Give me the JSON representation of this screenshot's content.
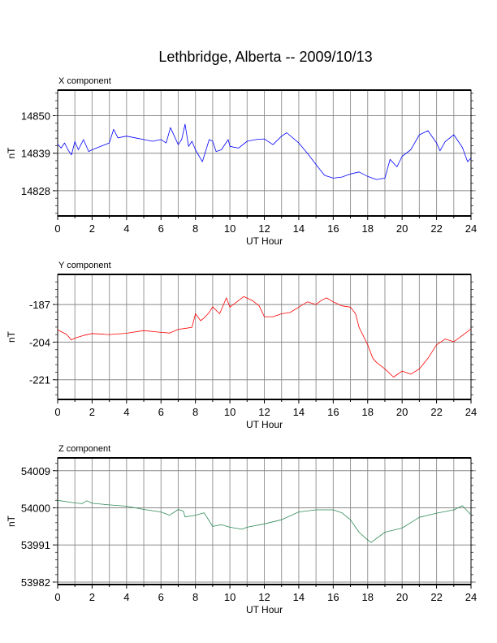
{
  "chart_data": {
    "type": "line",
    "title": "Lethbridge, Alberta -- 2009/10/13",
    "panels": [
      {
        "label": "X component",
        "xlabel": "UT Hour",
        "ylabel": "nT",
        "color": "#0000ff",
        "xlim": [
          0,
          24
        ],
        "ylim": [
          14820.6,
          14857.5
        ],
        "xticks": [
          0,
          2,
          4,
          6,
          8,
          10,
          12,
          14,
          16,
          18,
          20,
          22,
          24
        ],
        "yticks": [
          14828,
          14839,
          14850
        ],
        "points": [
          [
            0,
            14841.7
          ],
          [
            0.2,
            14840.5
          ],
          [
            0.4,
            14842
          ],
          [
            0.6,
            14840
          ],
          [
            0.8,
            14838.5
          ],
          [
            1,
            14842.4
          ],
          [
            1.2,
            14840
          ],
          [
            1.5,
            14843
          ],
          [
            1.8,
            14839.5
          ],
          [
            2,
            14840
          ],
          [
            2.5,
            14841
          ],
          [
            3,
            14842
          ],
          [
            3.25,
            14846
          ],
          [
            3.5,
            14843.5
          ],
          [
            4,
            14844
          ],
          [
            4.5,
            14843.5
          ],
          [
            5,
            14843
          ],
          [
            5.5,
            14842.5
          ],
          [
            6,
            14843
          ],
          [
            6.3,
            14842
          ],
          [
            6.55,
            14846.5
          ],
          [
            7,
            14841.5
          ],
          [
            7.2,
            14843
          ],
          [
            7.4,
            14847.5
          ],
          [
            7.6,
            14841
          ],
          [
            7.8,
            14842.5
          ],
          [
            8,
            14840
          ],
          [
            8.4,
            14836.5
          ],
          [
            8.8,
            14843
          ],
          [
            9,
            14842.5
          ],
          [
            9.2,
            14839.5
          ],
          [
            9.5,
            14840
          ],
          [
            9.9,
            14843
          ],
          [
            10,
            14841
          ],
          [
            10.5,
            14840.5
          ],
          [
            11,
            14842.5
          ],
          [
            11.5,
            14843
          ],
          [
            12,
            14843.2
          ],
          [
            12.5,
            14841.5
          ],
          [
            13,
            14844
          ],
          [
            13.3,
            14845
          ],
          [
            14,
            14842
          ],
          [
            14.5,
            14839
          ],
          [
            15,
            14835.7
          ],
          [
            15.5,
            14832.5
          ],
          [
            16,
            14831.7
          ],
          [
            16.5,
            14832
          ],
          [
            17,
            14832.9
          ],
          [
            17.5,
            14833.5
          ],
          [
            18,
            14832.2
          ],
          [
            18.5,
            14831.3
          ],
          [
            19,
            14831.7
          ],
          [
            19.3,
            14837.2
          ],
          [
            19.7,
            14835
          ],
          [
            20,
            14838.1
          ],
          [
            20.5,
            14840
          ],
          [
            21,
            14844.4
          ],
          [
            21.5,
            14845.6
          ],
          [
            22,
            14842
          ],
          [
            22.2,
            14839.7
          ],
          [
            22.5,
            14842.4
          ],
          [
            23,
            14844.4
          ],
          [
            23.5,
            14840.7
          ],
          [
            23.8,
            14836.5
          ],
          [
            24,
            14837.6
          ]
        ]
      },
      {
        "label": "Y component",
        "xlabel": "UT Hour",
        "ylabel": "nT",
        "color": "#ff0000",
        "xlim": [
          0,
          24
        ],
        "ylim": [
          -229.9,
          -173.4
        ],
        "xticks": [
          0,
          2,
          4,
          6,
          8,
          10,
          12,
          14,
          16,
          18,
          20,
          22,
          24
        ],
        "yticks": [
          -221,
          -204,
          -187
        ],
        "points": [
          [
            0,
            -198.5
          ],
          [
            0.5,
            -200.4
          ],
          [
            0.8,
            -203
          ],
          [
            1,
            -202.2
          ],
          [
            1.5,
            -201
          ],
          [
            2,
            -200.1
          ],
          [
            3,
            -200.6
          ],
          [
            4,
            -200
          ],
          [
            5,
            -198.8
          ],
          [
            6,
            -199.6
          ],
          [
            6.5,
            -199.9
          ],
          [
            7,
            -198.2
          ],
          [
            7.5,
            -197.7
          ],
          [
            7.8,
            -197.3
          ],
          [
            8,
            -191.2
          ],
          [
            8.3,
            -194.3
          ],
          [
            8.5,
            -193.1
          ],
          [
            8.8,
            -190.6
          ],
          [
            9,
            -188
          ],
          [
            9.4,
            -191.2
          ],
          [
            9.8,
            -184
          ],
          [
            10,
            -188.2
          ],
          [
            10.5,
            -185.2
          ],
          [
            10.8,
            -183.4
          ],
          [
            11.3,
            -185.2
          ],
          [
            11.7,
            -187.6
          ],
          [
            12,
            -192.5
          ],
          [
            12.5,
            -192.5
          ],
          [
            13,
            -191.2
          ],
          [
            13.5,
            -190.6
          ],
          [
            14,
            -188.2
          ],
          [
            14.5,
            -185.8
          ],
          [
            15,
            -187
          ],
          [
            15.3,
            -185.2
          ],
          [
            15.6,
            -184
          ],
          [
            16,
            -185.8
          ],
          [
            16.5,
            -187.6
          ],
          [
            17,
            -188.2
          ],
          [
            17.3,
            -191.2
          ],
          [
            17.5,
            -197.3
          ],
          [
            18,
            -205.2
          ],
          [
            18.3,
            -211.3
          ],
          [
            18.5,
            -213.1
          ],
          [
            19,
            -216.1
          ],
          [
            19.5,
            -219.8
          ],
          [
            20,
            -217.1
          ],
          [
            20.5,
            -218.5
          ],
          [
            21,
            -216.1
          ],
          [
            21.5,
            -211.3
          ],
          [
            22,
            -205.2
          ],
          [
            22.5,
            -202.6
          ],
          [
            23,
            -203.8
          ],
          [
            23.5,
            -201
          ],
          [
            24,
            -198
          ]
        ]
      },
      {
        "label": "Z component",
        "xlabel": "UT Hour",
        "ylabel": "nT",
        "color": "#2e8b57",
        "xlim": [
          0,
          24
        ],
        "ylim": [
          53981.4,
          54012.1
        ],
        "xticks": [
          0,
          2,
          4,
          6,
          8,
          10,
          12,
          14,
          16,
          18,
          20,
          22,
          24
        ],
        "yticks": [
          53982,
          53991,
          54000,
          54009
        ],
        "points": [
          [
            0,
            54001.8
          ],
          [
            0.5,
            54001.5
          ],
          [
            1,
            54001.2
          ],
          [
            1.4,
            54001
          ],
          [
            1.7,
            54001.7
          ],
          [
            2,
            54001.1
          ],
          [
            3,
            54000.7
          ],
          [
            4,
            54000.4
          ],
          [
            5,
            53999.6
          ],
          [
            6,
            53999
          ],
          [
            6.5,
            53998.2
          ],
          [
            7,
            53999.6
          ],
          [
            7.3,
            53999.2
          ],
          [
            7.4,
            53997.8
          ],
          [
            8,
            53998.2
          ],
          [
            8.5,
            53998.8
          ],
          [
            9,
            53995.5
          ],
          [
            9.5,
            53995.9
          ],
          [
            10,
            53995.3
          ],
          [
            10.7,
            53994.8
          ],
          [
            11,
            53995.3
          ],
          [
            12,
            53996.1
          ],
          [
            13,
            53997.1
          ],
          [
            14,
            53999
          ],
          [
            15,
            53999.5
          ],
          [
            16,
            53999.5
          ],
          [
            16.5,
            53998.8
          ],
          [
            17,
            53997.1
          ],
          [
            17.5,
            53994.1
          ],
          [
            18,
            53992.2
          ],
          [
            18.2,
            53991.6
          ],
          [
            19,
            53994.1
          ],
          [
            20,
            53995.1
          ],
          [
            21,
            53997.7
          ],
          [
            22,
            53998.7
          ],
          [
            23,
            53999.5
          ],
          [
            23.5,
            54000.5
          ],
          [
            24,
            53998.3
          ]
        ]
      }
    ]
  }
}
